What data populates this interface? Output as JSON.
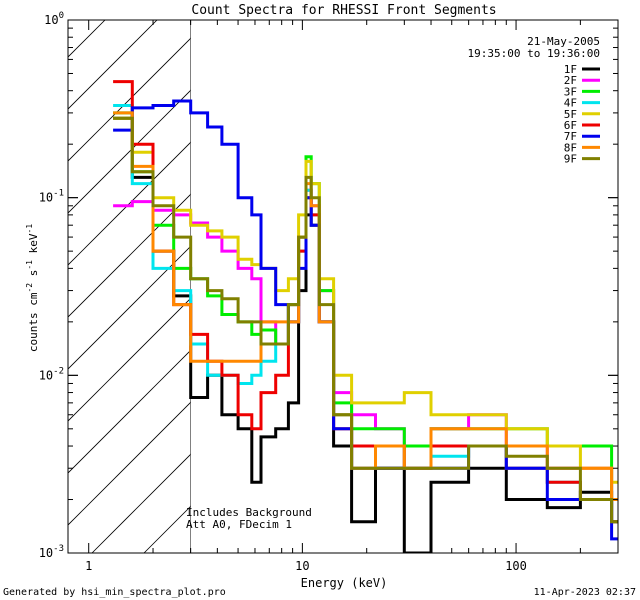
{
  "chart_data": {
    "type": "line",
    "title": "Count Spectra for RHESSI Front Segments",
    "xlabel": "Energy (keV)",
    "ylabel_main": "counts cm",
    "ylabel_exp1": "-2",
    "ylabel_mid": " s",
    "ylabel_exp2": "-1",
    "ylabel_end": " keV",
    "ylabel_exp3": "-1",
    "xscale": "log",
    "yscale": "log",
    "xlim": [
      0.8,
      300
    ],
    "ylim": [
      0.001,
      1
    ],
    "x_ticks": [
      {
        "value": 1,
        "label": "1"
      },
      {
        "value": 10,
        "label": "10"
      },
      {
        "value": 100,
        "label": "100"
      }
    ],
    "y_ticks": [
      {
        "value": 1,
        "base": "10",
        "exp": "0"
      },
      {
        "value": 0.1,
        "base": "10",
        "exp": "-1"
      },
      {
        "value": 0.01,
        "base": "10",
        "exp": "-2"
      },
      {
        "value": 0.001,
        "base": "10",
        "exp": "-3"
      }
    ],
    "date": "21-May-2005",
    "time_range": "19:35:00 to 19:36:00",
    "shaded_region_max_energy": 3,
    "annotations": [
      "Includes Background",
      "Att A0, FDecim 1"
    ],
    "series": [
      {
        "name": "1F",
        "color": "#000000",
        "points": [
          [
            1.3,
            0.28
          ],
          [
            1.6,
            0.13
          ],
          [
            2.0,
            0.05
          ],
          [
            2.5,
            0.028
          ],
          [
            3.0,
            0.0075
          ],
          [
            3.6,
            0.01
          ],
          [
            4.2,
            0.006
          ],
          [
            5.0,
            0.005
          ],
          [
            5.8,
            0.0025
          ],
          [
            6.4,
            0.0045
          ],
          [
            7.5,
            0.005
          ],
          [
            8.6,
            0.007
          ],
          [
            9.6,
            0.03
          ],
          [
            10.4,
            0.08
          ],
          [
            11.0,
            0.07
          ],
          [
            12.0,
            0.02
          ],
          [
            14.0,
            0.004
          ],
          [
            17.0,
            0.0015
          ],
          [
            22.0,
            0.003
          ],
          [
            30.0,
            0.001
          ],
          [
            40.0,
            0.0025
          ],
          [
            60.0,
            0.003
          ],
          [
            90.0,
            0.002
          ],
          [
            140.0,
            0.0018
          ],
          [
            200.0,
            0.0022
          ],
          [
            280.0,
            0.0015
          ]
        ]
      },
      {
        "name": "2F",
        "color": "#ff00ff",
        "points": [
          [
            1.3,
            0.09
          ],
          [
            1.6,
            0.095
          ],
          [
            2.0,
            0.085
          ],
          [
            2.5,
            0.08
          ],
          [
            3.0,
            0.072
          ],
          [
            3.6,
            0.06
          ],
          [
            4.2,
            0.05
          ],
          [
            5.0,
            0.04
          ],
          [
            5.8,
            0.035
          ],
          [
            6.4,
            0.02
          ],
          [
            7.5,
            0.015
          ],
          [
            8.6,
            0.025
          ],
          [
            9.6,
            0.06
          ],
          [
            10.4,
            0.11
          ],
          [
            11.0,
            0.09
          ],
          [
            12.0,
            0.03
          ],
          [
            14.0,
            0.008
          ],
          [
            17.0,
            0.006
          ],
          [
            22.0,
            0.005
          ],
          [
            30.0,
            0.004
          ],
          [
            40.0,
            0.005
          ],
          [
            60.0,
            0.006
          ],
          [
            90.0,
            0.004
          ],
          [
            140.0,
            0.003
          ],
          [
            200.0,
            0.003
          ],
          [
            280.0,
            0.002
          ]
        ]
      },
      {
        "name": "3F",
        "color": "#00ee00",
        "points": [
          [
            1.3,
            0.3
          ],
          [
            1.6,
            0.14
          ],
          [
            2.0,
            0.07
          ],
          [
            2.5,
            0.04
          ],
          [
            3.0,
            0.035
          ],
          [
            3.6,
            0.028
          ],
          [
            4.2,
            0.022
          ],
          [
            5.0,
            0.02
          ],
          [
            5.8,
            0.017
          ],
          [
            6.4,
            0.018
          ],
          [
            7.5,
            0.015
          ],
          [
            8.6,
            0.025
          ],
          [
            9.6,
            0.06
          ],
          [
            10.4,
            0.17
          ],
          [
            11.0,
            0.12
          ],
          [
            12.0,
            0.03
          ],
          [
            14.0,
            0.007
          ],
          [
            17.0,
            0.005
          ],
          [
            22.0,
            0.005
          ],
          [
            30.0,
            0.004
          ],
          [
            40.0,
            0.005
          ],
          [
            60.0,
            0.005
          ],
          [
            90.0,
            0.005
          ],
          [
            140.0,
            0.004
          ],
          [
            200.0,
            0.004
          ],
          [
            280.0,
            0.002
          ]
        ]
      },
      {
        "name": "4F",
        "color": "#00e5ee",
        "points": [
          [
            1.3,
            0.33
          ],
          [
            1.6,
            0.12
          ],
          [
            2.0,
            0.04
          ],
          [
            2.5,
            0.03
          ],
          [
            3.0,
            0.015
          ],
          [
            3.6,
            0.01
          ],
          [
            4.2,
            0.01
          ],
          [
            5.0,
            0.009
          ],
          [
            5.8,
            0.01
          ],
          [
            6.4,
            0.012
          ],
          [
            7.5,
            0.015
          ],
          [
            8.6,
            0.02
          ],
          [
            9.6,
            0.05
          ],
          [
            10.4,
            0.11
          ],
          [
            11.0,
            0.08
          ],
          [
            12.0,
            0.02
          ],
          [
            14.0,
            0.006
          ],
          [
            17.0,
            0.004
          ],
          [
            22.0,
            0.004
          ],
          [
            30.0,
            0.003
          ],
          [
            40.0,
            0.0035
          ],
          [
            60.0,
            0.004
          ],
          [
            90.0,
            0.003
          ],
          [
            140.0,
            0.0025
          ],
          [
            200.0,
            0.002
          ],
          [
            280.0,
            0.0015
          ]
        ]
      },
      {
        "name": "5F",
        "color": "#e0d000",
        "points": [
          [
            1.3,
            0.28
          ],
          [
            1.6,
            0.18
          ],
          [
            2.0,
            0.1
          ],
          [
            2.5,
            0.085
          ],
          [
            3.0,
            0.07
          ],
          [
            3.6,
            0.065
          ],
          [
            4.2,
            0.06
          ],
          [
            5.0,
            0.045
          ],
          [
            5.8,
            0.042
          ],
          [
            6.4,
            0.04
          ],
          [
            7.5,
            0.03
          ],
          [
            8.6,
            0.035
          ],
          [
            9.6,
            0.08
          ],
          [
            10.4,
            0.16
          ],
          [
            11.0,
            0.12
          ],
          [
            12.0,
            0.035
          ],
          [
            14.0,
            0.01
          ],
          [
            17.0,
            0.007
          ],
          [
            22.0,
            0.007
          ],
          [
            30.0,
            0.008
          ],
          [
            40.0,
            0.006
          ],
          [
            60.0,
            0.006
          ],
          [
            90.0,
            0.005
          ],
          [
            140.0,
            0.004
          ],
          [
            200.0,
            0.003
          ],
          [
            280.0,
            0.0025
          ]
        ]
      },
      {
        "name": "6F",
        "color": "#ee0000",
        "points": [
          [
            1.3,
            0.45
          ],
          [
            1.6,
            0.2
          ],
          [
            2.0,
            0.05
          ],
          [
            2.5,
            0.025
          ],
          [
            3.0,
            0.017
          ],
          [
            3.6,
            0.012
          ],
          [
            4.2,
            0.01
          ],
          [
            5.0,
            0.006
          ],
          [
            5.8,
            0.005
          ],
          [
            6.4,
            0.008
          ],
          [
            7.5,
            0.01
          ],
          [
            8.6,
            0.02
          ],
          [
            9.6,
            0.05
          ],
          [
            10.4,
            0.1
          ],
          [
            11.0,
            0.08
          ],
          [
            12.0,
            0.02
          ],
          [
            14.0,
            0.005
          ],
          [
            17.0,
            0.004
          ],
          [
            22.0,
            0.004
          ],
          [
            30.0,
            0.003
          ],
          [
            40.0,
            0.004
          ],
          [
            60.0,
            0.004
          ],
          [
            90.0,
            0.003
          ],
          [
            140.0,
            0.0025
          ],
          [
            200.0,
            0.002
          ],
          [
            280.0,
            0.0015
          ]
        ]
      },
      {
        "name": "7F",
        "color": "#0000ee",
        "points": [
          [
            1.3,
            0.24
          ],
          [
            1.6,
            0.32
          ],
          [
            2.0,
            0.33
          ],
          [
            2.5,
            0.35
          ],
          [
            3.0,
            0.3
          ],
          [
            3.6,
            0.25
          ],
          [
            4.2,
            0.2
          ],
          [
            5.0,
            0.1
          ],
          [
            5.8,
            0.08
          ],
          [
            6.4,
            0.04
          ],
          [
            7.5,
            0.025
          ],
          [
            8.6,
            0.02
          ],
          [
            9.6,
            0.04
          ],
          [
            10.4,
            0.1
          ],
          [
            11.0,
            0.07
          ],
          [
            12.0,
            0.02
          ],
          [
            14.0,
            0.005
          ],
          [
            17.0,
            0.003
          ],
          [
            22.0,
            0.003
          ],
          [
            30.0,
            0.003
          ],
          [
            40.0,
            0.003
          ],
          [
            60.0,
            0.004
          ],
          [
            90.0,
            0.003
          ],
          [
            140.0,
            0.002
          ],
          [
            200.0,
            0.002
          ],
          [
            280.0,
            0.0012
          ]
        ]
      },
      {
        "name": "8F",
        "color": "#ff8800",
        "points": [
          [
            1.3,
            0.3
          ],
          [
            1.6,
            0.15
          ],
          [
            2.0,
            0.05
          ],
          [
            2.5,
            0.025
          ],
          [
            3.0,
            0.012
          ],
          [
            3.6,
            0.012
          ],
          [
            4.2,
            0.012
          ],
          [
            5.0,
            0.012
          ],
          [
            5.8,
            0.012
          ],
          [
            6.4,
            0.02
          ],
          [
            7.5,
            0.02
          ],
          [
            8.6,
            0.02
          ],
          [
            9.6,
            0.06
          ],
          [
            10.4,
            0.12
          ],
          [
            11.0,
            0.09
          ],
          [
            12.0,
            0.02
          ],
          [
            14.0,
            0.006
          ],
          [
            17.0,
            0.003
          ],
          [
            22.0,
            0.004
          ],
          [
            30.0,
            0.003
          ],
          [
            40.0,
            0.005
          ],
          [
            60.0,
            0.005
          ],
          [
            90.0,
            0.004
          ],
          [
            140.0,
            0.003
          ],
          [
            200.0,
            0.003
          ],
          [
            280.0,
            0.002
          ]
        ]
      },
      {
        "name": "9F",
        "color": "#808000",
        "points": [
          [
            1.3,
            0.28
          ],
          [
            1.6,
            0.14
          ],
          [
            2.0,
            0.09
          ],
          [
            2.5,
            0.06
          ],
          [
            3.0,
            0.035
          ],
          [
            3.6,
            0.03
          ],
          [
            4.2,
            0.027
          ],
          [
            5.0,
            0.02
          ],
          [
            5.8,
            0.02
          ],
          [
            6.4,
            0.015
          ],
          [
            7.5,
            0.015
          ],
          [
            8.6,
            0.025
          ],
          [
            9.6,
            0.06
          ],
          [
            10.4,
            0.13
          ],
          [
            11.0,
            0.1
          ],
          [
            12.0,
            0.025
          ],
          [
            14.0,
            0.006
          ],
          [
            17.0,
            0.003
          ],
          [
            22.0,
            0.003
          ],
          [
            30.0,
            0.003
          ],
          [
            40.0,
            0.003
          ],
          [
            60.0,
            0.004
          ],
          [
            90.0,
            0.0035
          ],
          [
            140.0,
            0.003
          ],
          [
            200.0,
            0.002
          ],
          [
            280.0,
            0.0015
          ]
        ]
      }
    ]
  },
  "footer": {
    "generated_by": "Generated by hsi_min_spectra_plot.pro",
    "timestamp": "11-Apr-2023 02:37"
  }
}
